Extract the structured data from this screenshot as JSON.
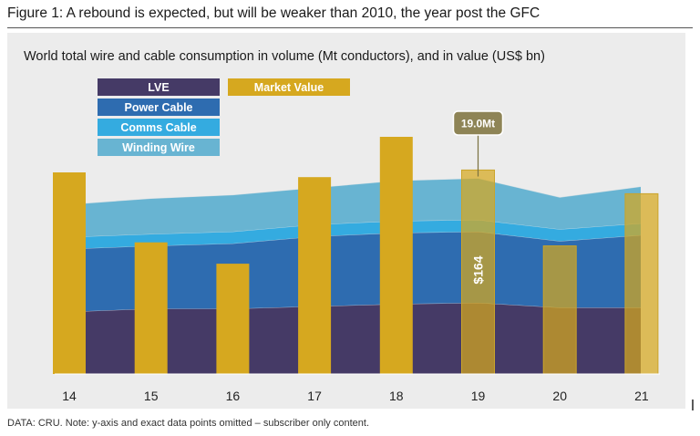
{
  "figure": {
    "title": "Figure 1: A rebound is expected, but will be weaker than 2010, the year post the GFC",
    "source": "DATA: CRU.  Note: y-axis and exact data points omitted – subscriber only content."
  },
  "chart_data": {
    "type": "area",
    "title": "World total wire and cable consumption in volume (Mt conductors), and in value (US$ bn)",
    "xlabel": "",
    "ylabel": "",
    "categories": [
      "14",
      "15",
      "16",
      "17",
      "18",
      "19",
      "20",
      "21"
    ],
    "ylim": [
      0,
      100
    ],
    "grid": false,
    "legend_position": "top-left",
    "series": [
      {
        "name": "LVE",
        "kind": "stacked-area",
        "color": "#453a66",
        "values": [
          26.5,
          27.5,
          27.5,
          28.5,
          29.5,
          30.0,
          28.0,
          28.0
        ]
      },
      {
        "name": "Power Cable",
        "kind": "stacked-area",
        "color": "#2e6cb0",
        "values": [
          26.5,
          26.5,
          27.5,
          29.5,
          30.0,
          30.0,
          28.0,
          30.5
        ]
      },
      {
        "name": "Comms Cable",
        "kind": "stacked-area",
        "color": "#34abe0",
        "values": [
          5.0,
          5.0,
          5.0,
          5.0,
          5.0,
          5.0,
          5.0,
          5.0
        ]
      },
      {
        "name": "Winding Wire",
        "kind": "stacked-area",
        "color": "#68b4d2",
        "values": [
          14.0,
          15.0,
          15.5,
          15.5,
          17.0,
          17.5,
          13.5,
          15.5
        ]
      },
      {
        "name": "Market Value",
        "kind": "bar",
        "color": "#d6a81f",
        "values": [
          85.0,
          55.5,
          46.5,
          83.0,
          100.0,
          86.0,
          54.0,
          76.0
        ]
      }
    ],
    "forecast_from": "19",
    "annotations": [
      {
        "category": "19",
        "label": "19.0Mt",
        "kind": "callout"
      },
      {
        "category": "19",
        "label": "$164",
        "kind": "bar-label"
      }
    ]
  }
}
